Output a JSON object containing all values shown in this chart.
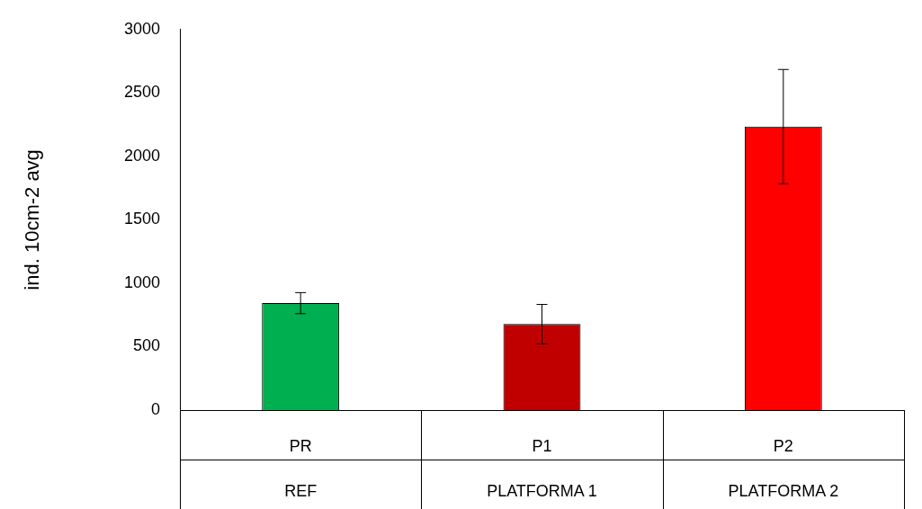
{
  "chart_data": {
    "type": "bar",
    "ylabel": "ind. 10cm-2 avg",
    "categories": [
      "PR",
      "P1",
      "P2"
    ],
    "values": [
      843,
      678,
      2235
    ],
    "colors": [
      "#00b050",
      "#c00000",
      "#ff0000"
    ],
    "errors": [
      83,
      155,
      450
    ],
    "ylim": [
      0,
      3000
    ],
    "yticks": [
      0,
      500,
      1000,
      1500,
      2000,
      2500,
      3000
    ],
    "grid": false,
    "legend": false,
    "annotations": [
      "REF",
      "PLATFORMA 1",
      "PLATFORMA 2"
    ]
  }
}
